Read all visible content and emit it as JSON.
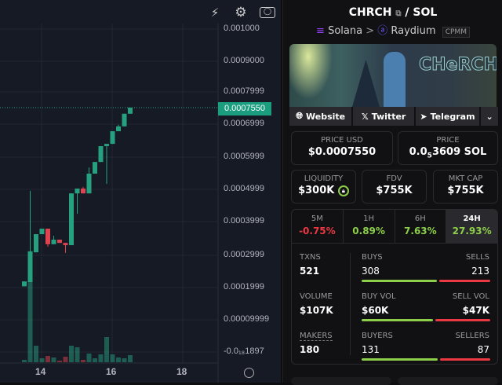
{
  "toolbar": {
    "icons": [
      "indicator-icon",
      "gear-icon",
      "camera-icon"
    ]
  },
  "chart_data": {
    "type": "candlestick",
    "y_ticks": [
      "0.001000",
      "0.0009000",
      "0.0007999",
      "0.0006999",
      "0.0005999",
      "0.0004999",
      "0.0003999",
      "0.0002999",
      "0.0001999",
      "0.00009999",
      "-0.0₁₈1897"
    ],
    "x_ticks": [
      "14",
      "16",
      "18"
    ],
    "current_price": "0.0007550",
    "candles": [
      {
        "o": 0.000203,
        "h": 0.000218,
        "l": 0.000203,
        "c": 0.000218,
        "v": 3
      },
      {
        "o": 0.000216,
        "h": 0.000498,
        "l": 0.000216,
        "c": 0.000311,
        "v": 102
      },
      {
        "o": 0.000308,
        "h": 0.000364,
        "l": 0.000308,
        "c": 0.000364,
        "v": 21
      },
      {
        "o": 0.000364,
        "h": 0.000381,
        "l": 0.000364,
        "c": 0.000381,
        "v": 5
      },
      {
        "o": 0.000381,
        "h": 0.000381,
        "l": 0.000325,
        "c": 0.000333,
        "v": 8
      },
      {
        "o": 0.000333,
        "h": 0.000359,
        "l": 0.000333,
        "c": 0.000347,
        "v": 6
      },
      {
        "o": 0.000347,
        "h": 0.000347,
        "l": 0.000337,
        "c": 0.000337,
        "v": 2
      },
      {
        "o": 0.000337,
        "h": 0.000337,
        "l": 0.000306,
        "c": 0.00033,
        "v": 7
      },
      {
        "o": 0.00033,
        "h": 0.00049,
        "l": 0.00033,
        "c": 0.00049,
        "v": 21
      },
      {
        "o": 0.00049,
        "h": 0.000505,
        "l": 0.000427,
        "c": 0.000505,
        "v": 19
      },
      {
        "o": 0.000505,
        "h": 0.00051,
        "l": 0.00049,
        "c": 0.00049,
        "v": 3
      },
      {
        "o": 0.00049,
        "h": 0.00057,
        "l": 0.00049,
        "c": 0.000551,
        "v": 11
      },
      {
        "o": 0.000551,
        "h": 0.000587,
        "l": 0.000551,
        "c": 0.000587,
        "v": 5
      },
      {
        "o": 0.000587,
        "h": 0.000636,
        "l": 0.000587,
        "c": 0.000636,
        "v": 10
      },
      {
        "o": 0.000636,
        "h": 0.000643,
        "l": 0.000519,
        "c": 0.000643,
        "v": 32
      },
      {
        "o": 0.000643,
        "h": 0.000682,
        "l": 0.000643,
        "c": 0.000682,
        "v": 10
      },
      {
        "o": 0.000682,
        "h": 0.000702,
        "l": 0.000682,
        "c": 0.000697,
        "v": 6
      },
      {
        "o": 0.000697,
        "h": 0.000736,
        "l": 0.000697,
        "c": 0.000736,
        "v": 5
      },
      {
        "o": 0.000736,
        "h": 0.000755,
        "l": 0.000736,
        "c": 0.000755,
        "v": 9
      }
    ]
  },
  "pair": {
    "base": "CHRCH",
    "sep": "/",
    "quote": "SOL",
    "chain": "Solana",
    "dex": "Raydium",
    "pool_type": "CPMM",
    "banner_logo": "CHeRCH"
  },
  "links": {
    "website": "Website",
    "twitter": "Twitter",
    "telegram": "Telegram"
  },
  "price_usd": {
    "label": "PRICE USD",
    "value": "$0.0007550"
  },
  "price_sol": {
    "label": "PRICE",
    "prefix": "0.0",
    "sub": "5",
    "rest": "3609 SOL"
  },
  "liquidity": {
    "label": "LIQUIDITY",
    "value": "$300K"
  },
  "fdv": {
    "label": "FDV",
    "value": "$755K"
  },
  "mktcap": {
    "label": "MKT CAP",
    "value": "$755K"
  },
  "changes": [
    {
      "label": "5M",
      "value": "-0.75%"
    },
    {
      "label": "1H",
      "value": "0.89%"
    },
    {
      "label": "6H",
      "value": "7.63%"
    },
    {
      "label": "24H",
      "value": "27.93%"
    }
  ],
  "stats": {
    "txns": {
      "label": "TXNS",
      "value": "521"
    },
    "buys": {
      "label": "BUYS",
      "value": "308"
    },
    "sells": {
      "label": "SELLS",
      "value": "213"
    },
    "volume": {
      "label": "VOLUME",
      "value": "$107K"
    },
    "buy_vol": {
      "label": "BUY VOL",
      "value": "$60K"
    },
    "sell_vol": {
      "label": "SELL VOL",
      "value": "$47K"
    },
    "makers": {
      "label": "MAKERS",
      "value": "180"
    },
    "buyers": {
      "label": "BUYERS",
      "value": "131"
    },
    "sellers": {
      "label": "SELLERS",
      "value": "87"
    }
  },
  "colors": {
    "up": "#26a17f",
    "down": "#e0434f",
    "buy": "#8dcf4a",
    "sell": "#ea3943"
  }
}
